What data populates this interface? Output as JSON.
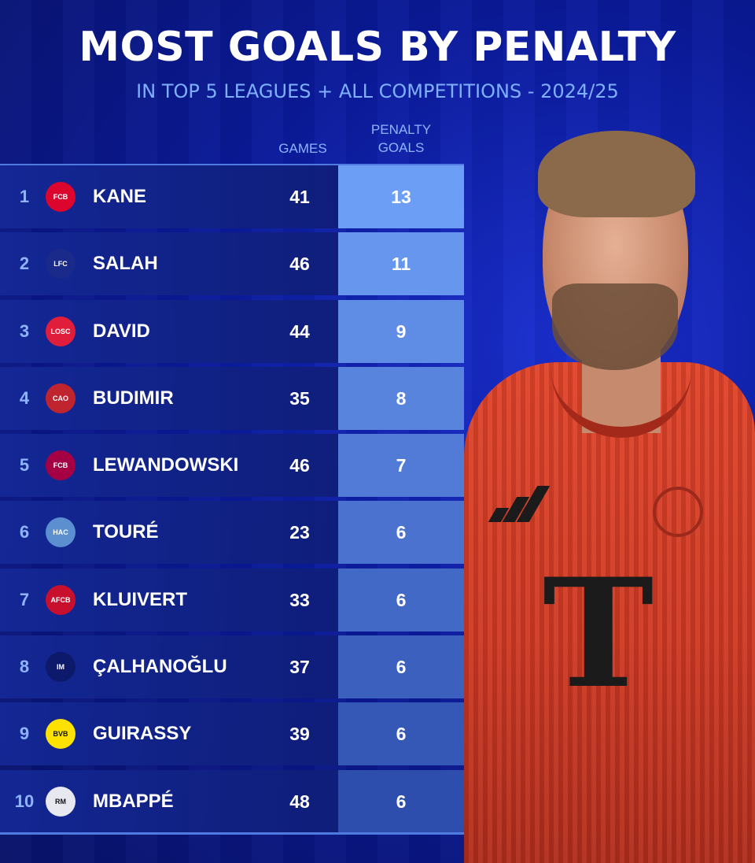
{
  "title": "MOST GOALS BY PENALTY",
  "subtitle": "IN TOP 5 LEAGUES + ALL COMPETITIONS - 2024/25",
  "columns": {
    "games": "GAMES",
    "penalty_goals_line1": "PENALTY",
    "penalty_goals_line2": "GOALS"
  },
  "jersey_letter": "T",
  "rows": [
    {
      "rank": "1",
      "name": "KANE",
      "games": "41",
      "penalty_goals": "13",
      "club_icon": "bayern-munich-crest",
      "bar_color": "#6d9ef5",
      "logo_color": "#dc052d",
      "logo_text": "FCB"
    },
    {
      "rank": "2",
      "name": "SALAH",
      "games": "46",
      "penalty_goals": "11",
      "club_icon": "liverpool-liverbird",
      "bar_color": "#6696ee",
      "logo_color": "#1a2a8a",
      "logo_text": "LFC"
    },
    {
      "rank": "3",
      "name": "DAVID",
      "games": "44",
      "penalty_goals": "9",
      "club_icon": "lille-losc-crest",
      "bar_color": "#5f8de6",
      "logo_color": "#e01e3c",
      "logo_text": "LOSC"
    },
    {
      "rank": "4",
      "name": "BUDIMIR",
      "games": "35",
      "penalty_goals": "8",
      "club_icon": "osasuna-crest",
      "bar_color": "#5884de",
      "logo_color": "#c0242e",
      "logo_text": "CAO"
    },
    {
      "rank": "5",
      "name": "LEWANDOWSKI",
      "games": "46",
      "penalty_goals": "7",
      "club_icon": "barcelona-crest",
      "bar_color": "#517bd6",
      "logo_color": "#a50044",
      "logo_text": "FCB"
    },
    {
      "rank": "6",
      "name": "TOURÉ",
      "games": "23",
      "penalty_goals": "6",
      "club_icon": "le-havre-crest",
      "bar_color": "#4a72ce",
      "logo_color": "#5b8fd0",
      "logo_text": "HAC"
    },
    {
      "rank": "7",
      "name": "KLUIVERT",
      "games": "33",
      "penalty_goals": "6",
      "club_icon": "bournemouth-crest",
      "bar_color": "#4369c6",
      "logo_color": "#c8102e",
      "logo_text": "AFCB"
    },
    {
      "rank": "8",
      "name": "ÇALHANOĞLU",
      "games": "37",
      "penalty_goals": "6",
      "club_icon": "inter-milan-crest",
      "bar_color": "#3c60be",
      "logo_color": "#0d1a6b",
      "logo_text": "IM"
    },
    {
      "rank": "9",
      "name": "GUIRASSY",
      "games": "39",
      "penalty_goals": "6",
      "club_icon": "borussia-dortmund-crest",
      "bar_color": "#3557b6",
      "logo_color": "#fde100",
      "logo_text": "BVB"
    },
    {
      "rank": "10",
      "name": "MBAPPÉ",
      "games": "48",
      "penalty_goals": "6",
      "club_icon": "real-madrid-crest",
      "bar_color": "#2e4eae",
      "logo_color": "#e8e8f0",
      "logo_text": "RM"
    }
  ]
}
